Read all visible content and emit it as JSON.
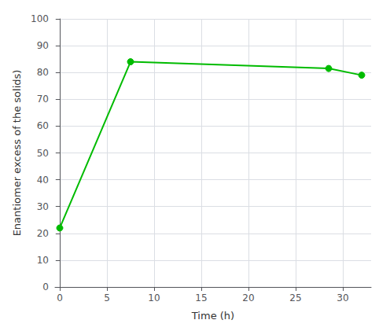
{
  "chart_data": {
    "type": "line",
    "xlabel": "Time (h)",
    "ylabel": "Enantiomer excess of the solids)",
    "x": [
      0,
      7.5,
      28.5,
      32
    ],
    "values": [
      22,
      84,
      81.5,
      79
    ],
    "color": "#00BB00",
    "marker": "circle",
    "xlim": [
      -0.5,
      33
    ],
    "ylim": [
      0,
      100
    ],
    "xticks": [
      0,
      5,
      10,
      15,
      20,
      25,
      30
    ],
    "yticks": [
      0,
      10,
      20,
      30,
      40,
      50,
      60,
      70,
      80,
      90,
      100
    ],
    "grid": true
  }
}
